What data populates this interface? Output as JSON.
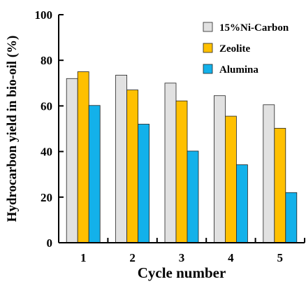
{
  "chart_data": {
    "type": "bar",
    "title": "",
    "xlabel": "Cycle number",
    "ylabel": "Hydrocarbon yield in bio-oil (%)",
    "ylim": [
      0,
      100
    ],
    "yticks": [
      "0",
      "20",
      "40",
      "60",
      "80",
      "100"
    ],
    "categories": [
      "1",
      "2",
      "3",
      "4",
      "5"
    ],
    "legend_position": "top-right",
    "grid": false,
    "series": [
      {
        "name": "15%Ni-Carbon",
        "color": "#e1e1e1",
        "values": [
          72,
          73.5,
          70,
          64.5,
          60.5
        ]
      },
      {
        "name": "Zeolite",
        "color": "#ffc000",
        "values": [
          75,
          67,
          62.2,
          55.5,
          50.2
        ]
      },
      {
        "name": "Alumina",
        "color": "#13b1ea",
        "values": [
          60.2,
          52,
          40.2,
          34.2,
          22
        ]
      }
    ]
  }
}
